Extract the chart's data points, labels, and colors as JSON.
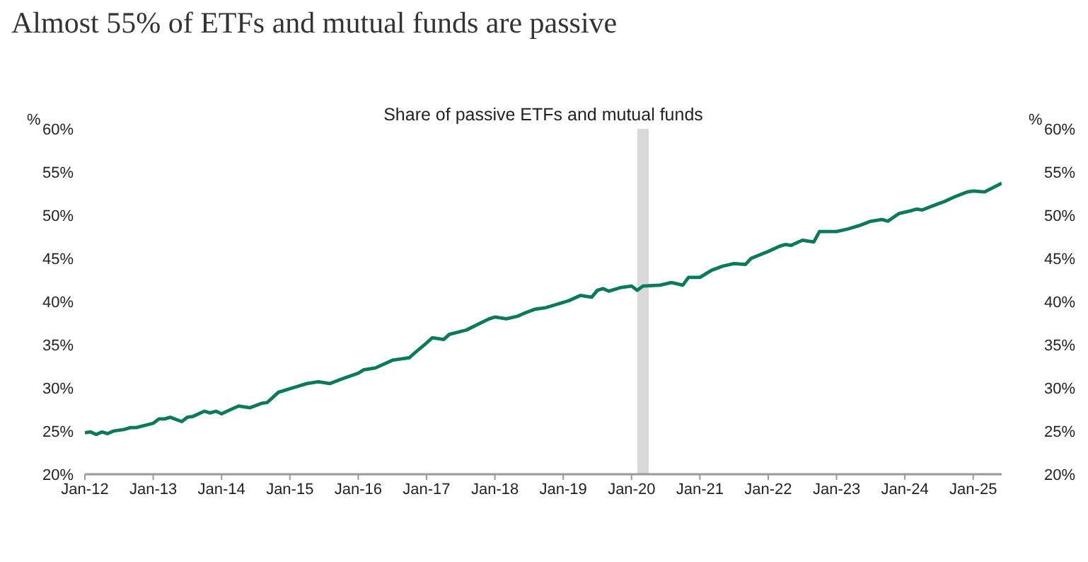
{
  "chart_data": {
    "type": "line",
    "title": "Almost 55% of ETFs and mutual funds are passive",
    "subtitle": "Share of passive ETFs and mutual funds",
    "ylabel": "%",
    "y2label": "%",
    "x": [
      "2012-01",
      "2012-02",
      "2012-03",
      "2012-04",
      "2012-05",
      "2012-06",
      "2012-08",
      "2012-09",
      "2012-10",
      "2013-01",
      "2013-02",
      "2013-03",
      "2013-04",
      "2013-06",
      "2013-07",
      "2013-08",
      "2013-10",
      "2013-11",
      "2013-12",
      "2014-01",
      "2014-02",
      "2014-04",
      "2014-06",
      "2014-08",
      "2014-09",
      "2014-11",
      "2015-02",
      "2015-04",
      "2015-06",
      "2015-08",
      "2015-10",
      "2016-01",
      "2016-02",
      "2016-04",
      "2016-07",
      "2016-10",
      "2016-11",
      "2017-01",
      "2017-02",
      "2017-04",
      "2017-05",
      "2017-08",
      "2017-12",
      "2018-01",
      "2018-03",
      "2018-05",
      "2018-06",
      "2018-08",
      "2018-10",
      "2019-01",
      "2019-02",
      "2019-04",
      "2019-06",
      "2019-07",
      "2019-08",
      "2019-09",
      "2019-11",
      "2020-01",
      "2020-02",
      "2020-03",
      "2020-06",
      "2020-08",
      "2020-10",
      "2020-11",
      "2021-01",
      "2021-03",
      "2021-05",
      "2021-07",
      "2021-09",
      "2021-10",
      "2022-01",
      "2022-03",
      "2022-04",
      "2022-05",
      "2022-07",
      "2022-09",
      "2022-10",
      "2023-01",
      "2023-03",
      "2023-05",
      "2023-07",
      "2023-09",
      "2023-10",
      "2023-12",
      "2024-02",
      "2024-03",
      "2024-04",
      "2024-06",
      "2024-08",
      "2024-10",
      "2024-12",
      "2025-01",
      "2025-03",
      "2025-06"
    ],
    "series": [
      {
        "color": "#0b7a5c",
        "values": [
          24.8,
          24.9,
          24.6,
          24.9,
          24.7,
          25.0,
          25.2,
          25.4,
          25.4,
          25.9,
          26.4,
          26.4,
          26.6,
          26.1,
          26.6,
          26.7,
          27.3,
          27.1,
          27.3,
          27.0,
          27.3,
          27.9,
          27.7,
          28.2,
          28.3,
          29.5,
          30.1,
          30.5,
          30.7,
          30.5,
          31.0,
          31.7,
          32.1,
          32.3,
          33.2,
          33.5,
          34.1,
          35.2,
          35.8,
          35.6,
          36.2,
          36.7,
          38.0,
          38.2,
          38.0,
          38.3,
          38.6,
          39.1,
          39.3,
          39.9,
          40.1,
          40.7,
          40.5,
          41.3,
          41.5,
          41.2,
          41.6,
          41.8,
          41.3,
          41.8,
          41.9,
          42.2,
          41.9,
          42.8,
          42.8,
          43.6,
          44.1,
          44.4,
          44.3,
          45.0,
          45.8,
          46.4,
          46.6,
          46.5,
          47.1,
          46.9,
          48.1,
          48.1,
          48.4,
          48.8,
          49.3,
          49.5,
          49.3,
          50.2,
          50.5,
          50.7,
          50.6,
          51.1,
          51.6,
          52.2,
          52.7,
          52.8,
          52.7,
          53.7
        ]
      }
    ],
    "xlim": [
      "2012-01",
      "2025-06"
    ],
    "xticks": [
      {
        "value": "2012-01",
        "label": "Jan-12"
      },
      {
        "value": "2013-01",
        "label": "Jan-13"
      },
      {
        "value": "2014-01",
        "label": "Jan-14"
      },
      {
        "value": "2015-01",
        "label": "Jan-15"
      },
      {
        "value": "2016-01",
        "label": "Jan-16"
      },
      {
        "value": "2017-01",
        "label": "Jan-17"
      },
      {
        "value": "2018-01",
        "label": "Jan-18"
      },
      {
        "value": "2019-01",
        "label": "Jan-19"
      },
      {
        "value": "2020-01",
        "label": "Jan-20"
      },
      {
        "value": "2021-01",
        "label": "Jan-21"
      },
      {
        "value": "2022-01",
        "label": "Jan-22"
      },
      {
        "value": "2023-01",
        "label": "Jan-23"
      },
      {
        "value": "2024-01",
        "label": "Jan-24"
      },
      {
        "value": "2025-01",
        "label": "Jan-25"
      }
    ],
    "ylim": [
      20,
      60
    ],
    "yticks": [
      {
        "value": 20,
        "label": "20%"
      },
      {
        "value": 25,
        "label": "25%"
      },
      {
        "value": 30,
        "label": "30%"
      },
      {
        "value": 35,
        "label": "35%"
      },
      {
        "value": 40,
        "label": "40%"
      },
      {
        "value": 45,
        "label": "45%"
      },
      {
        "value": 50,
        "label": "50%"
      },
      {
        "value": 55,
        "label": "55%"
      },
      {
        "value": 60,
        "label": "60%"
      }
    ],
    "y2lim": [
      20,
      60
    ],
    "y2ticks": [
      {
        "value": 20,
        "label": "20%"
      },
      {
        "value": 25,
        "label": "25%"
      },
      {
        "value": 30,
        "label": "30%"
      },
      {
        "value": 35,
        "label": "35%"
      },
      {
        "value": 40,
        "label": "40%"
      },
      {
        "value": 45,
        "label": "45%"
      },
      {
        "value": 50,
        "label": "50%"
      },
      {
        "value": 55,
        "label": "55%"
      },
      {
        "value": 60,
        "label": "60%"
      }
    ],
    "bands": [
      {
        "axis": "x",
        "from": "2020-02",
        "to": "2020-04",
        "color": "#d9d9d9"
      }
    ]
  }
}
